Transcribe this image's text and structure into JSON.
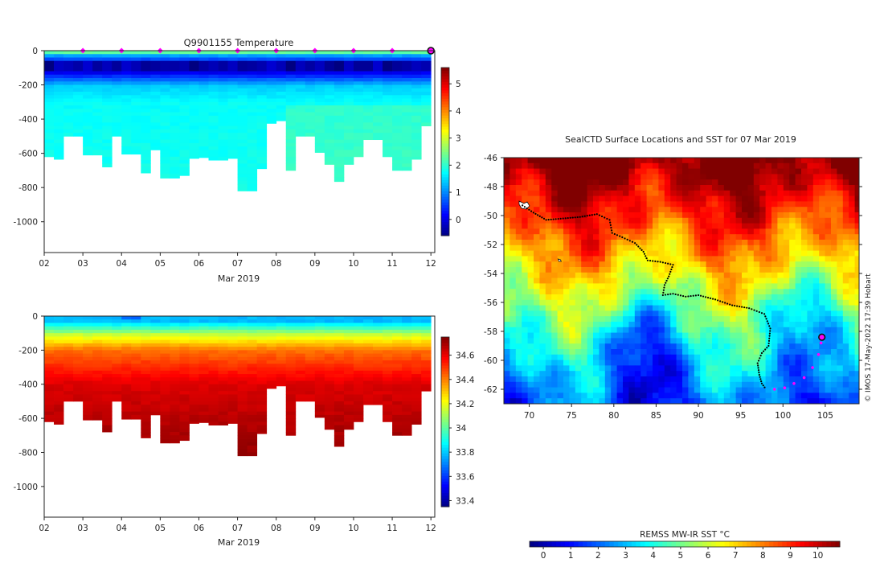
{
  "chart_data": [
    {
      "type": "heatmap",
      "title": "Q9901155  Temperature",
      "xlabel": "Mar 2019",
      "ylabel": "",
      "x_ticks": [
        "02",
        "03",
        "04",
        "05",
        "06",
        "07",
        "08",
        "09",
        "10",
        "11",
        "12"
      ],
      "y_ticks": [
        "0",
        "-200",
        "-400",
        "-600",
        "-800",
        "-1000"
      ],
      "ylim": [
        -1180,
        0
      ],
      "xlim": [
        2.0,
        12.1
      ],
      "colorbar_ticks": [
        "0",
        "1",
        "2",
        "3",
        "4",
        "5"
      ],
      "colorbar_range": [
        -0.6,
        5.6
      ],
      "profile_markers_day": [
        3,
        4,
        5,
        6,
        7,
        8,
        9,
        10,
        11
      ],
      "last_position_day": 12.0,
      "profile_days": [
        2.0,
        2.25,
        2.5,
        2.75,
        3.0,
        3.25,
        3.5,
        3.75,
        4.0,
        4.25,
        4.5,
        4.75,
        5.0,
        5.25,
        5.5,
        5.75,
        6.0,
        6.25,
        6.5,
        6.75,
        7.0,
        7.25,
        7.5,
        7.75,
        8.0,
        8.25,
        8.5,
        8.75,
        9.0,
        9.25,
        9.5,
        9.75,
        10.0,
        10.25,
        10.5,
        10.75,
        11.0,
        11.25,
        11.5,
        11.75,
        12.0
      ],
      "max_depth": [
        -620,
        -635,
        -500,
        -500,
        -610,
        -610,
        -680,
        -500,
        -605,
        -605,
        -715,
        -580,
        -745,
        -745,
        -730,
        -630,
        -625,
        -640,
        -640,
        -630,
        -820,
        -820,
        -690,
        -425,
        -410,
        -700,
        -500,
        -500,
        -595,
        -665,
        -765,
        -665,
        -620,
        -520,
        -520,
        -620,
        -700,
        -700,
        -635,
        -440,
        -440
      ]
    },
    {
      "type": "heatmap",
      "title": "",
      "xlabel": "Mar 2019",
      "x_ticks": [
        "02",
        "03",
        "04",
        "05",
        "06",
        "07",
        "08",
        "09",
        "10",
        "11",
        "12"
      ],
      "y_ticks": [
        "0",
        "-200",
        "-400",
        "-600",
        "-800",
        "-1000"
      ],
      "ylim": [
        -1180,
        0
      ],
      "xlim": [
        2.0,
        12.1
      ],
      "colorbar_ticks": [
        "33.4",
        "33.6",
        "33.8",
        "34",
        "34.2",
        "34.4",
        "34.6"
      ],
      "colorbar_range": [
        33.35,
        34.75
      ]
    },
    {
      "type": "heatmap",
      "title": "SealCTD Surface Locations and SST for 07 Mar 2019",
      "x_ticks": [
        "70",
        "75",
        "80",
        "85",
        "90",
        "95",
        "100",
        "105"
      ],
      "y_ticks": [
        "-46",
        "-48",
        "-50",
        "-52",
        "-54",
        "-56",
        "-58",
        "-60",
        "-62"
      ],
      "xlim": [
        67,
        109
      ],
      "ylim": [
        -63,
        -46
      ],
      "colorbar_label": "REMSS MW-IR SST °C",
      "colorbar_ticks": [
        "0",
        "1",
        "2",
        "3",
        "4",
        "5",
        "6",
        "7",
        "8",
        "9",
        "10"
      ],
      "colorbar_range": [
        -0.5,
        10.8
      ],
      "track_black": [
        [
          69.2,
          -49.3
        ],
        [
          70.5,
          -49.8
        ],
        [
          72,
          -50.3
        ],
        [
          74,
          -50.2
        ],
        [
          76,
          -50.1
        ],
        [
          78,
          -49.9
        ],
        [
          79.5,
          -50.3
        ],
        [
          79.8,
          -51.2
        ],
        [
          81,
          -51.5
        ],
        [
          82.5,
          -51.9
        ],
        [
          83.5,
          -52.5
        ],
        [
          84,
          -53.1
        ],
        [
          85.5,
          -53.2
        ],
        [
          87,
          -53.4
        ],
        [
          86.5,
          -54.2
        ],
        [
          86,
          -54.8
        ],
        [
          85.8,
          -55.5
        ],
        [
          87,
          -55.4
        ],
        [
          88.5,
          -55.6
        ],
        [
          90,
          -55.5
        ],
        [
          92,
          -55.8
        ],
        [
          94,
          -56.2
        ],
        [
          96,
          -56.4
        ],
        [
          97.8,
          -56.8
        ],
        [
          98.5,
          -57.8
        ],
        [
          98.3,
          -59
        ],
        [
          97.5,
          -59.5
        ],
        [
          97,
          -60.2
        ],
        [
          97.2,
          -61
        ],
        [
          97.5,
          -61.6
        ],
        [
          98,
          -62
        ]
      ],
      "track_magenta": [
        [
          99,
          -62
        ],
        [
          100.2,
          -61.9
        ],
        [
          101.3,
          -61.6
        ],
        [
          102.5,
          -61.2
        ],
        [
          103.5,
          -60.5
        ],
        [
          104.2,
          -59.6
        ],
        [
          104.5,
          -58.8
        ]
      ],
      "last_position": [
        104.6,
        -58.4
      ]
    }
  ],
  "credit": "© IMOS 17-May-2022 17:39 Hobart"
}
